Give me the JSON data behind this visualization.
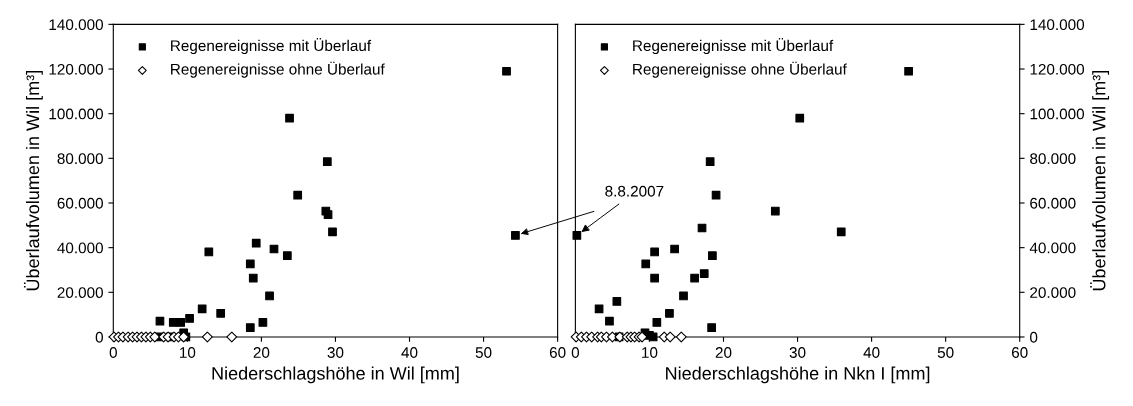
{
  "chart_data": [
    {
      "type": "scatter",
      "xlabel": "Niederschlagshöhe in Wil [mm]",
      "ylabel": "Überlaufvolumen in Wil [m³]",
      "xlim": [
        0,
        60
      ],
      "xticks": [
        0,
        10,
        20,
        30,
        40,
        50,
        60
      ],
      "ylim": [
        0,
        140000
      ],
      "yticks": [
        {
          "value": 0,
          "label": "0"
        },
        {
          "value": 20000,
          "label": "20.000"
        },
        {
          "value": 40000,
          "label": "40.000"
        },
        {
          "value": 60000,
          "label": "60.000"
        },
        {
          "value": 80000,
          "label": "80.000"
        },
        {
          "value": 100000,
          "label": "100.000"
        },
        {
          "value": 120000,
          "label": "120.000"
        },
        {
          "value": 140000,
          "label": "140.000"
        }
      ],
      "grid": false,
      "legend": "top left",
      "series": [
        {
          "name": "Regenereignisse mit Überlauf",
          "color": "#000000",
          "marker": "square",
          "x": [
            53.1,
            23.8,
            28.9,
            24.9,
            28.7,
            29.0,
            29.6,
            54.3,
            19.3,
            21.7,
            12.9,
            23.5,
            18.5,
            18.9,
            21.1,
            12.0,
            14.5,
            6.3,
            8.1,
            9.1,
            10.3,
            20.2,
            18.5,
            9.5,
            6.2,
            7.7,
            9.8
          ],
          "values": [
            119000,
            98000,
            78500,
            63500,
            56400,
            54800,
            47100,
            45500,
            42000,
            39400,
            38100,
            36400,
            32700,
            26400,
            18400,
            12600,
            10600,
            7100,
            6500,
            6500,
            8300,
            6500,
            4200,
            1900,
            0,
            0,
            0
          ]
        },
        {
          "name": "Regenereignisse ohne Überlauf",
          "color": "#000000",
          "marker": "diamond",
          "x": [
            0.1,
            0.7,
            1.3,
            2.0,
            2.6,
            3.2,
            3.8,
            4.4,
            5.0,
            5.6,
            6.8,
            7.4,
            8.2,
            8.8,
            9.5,
            12.7,
            16.0
          ],
          "values": [
            0,
            0,
            0,
            0,
            0,
            0,
            0,
            0,
            0,
            0,
            0,
            0,
            0,
            0,
            0,
            0,
            0
          ]
        }
      ]
    },
    {
      "type": "scatter",
      "xlabel": "Niederschlagshöhe in Nkn I [mm]",
      "ylabel": "Überlaufvolumen in Wil [m³]",
      "xlim": [
        0,
        60
      ],
      "xticks": [
        0,
        10,
        20,
        30,
        40,
        50,
        60
      ],
      "ylim": [
        0,
        140000
      ],
      "yticks": [
        {
          "value": 0,
          "label": "0"
        },
        {
          "value": 20000,
          "label": "20.000"
        },
        {
          "value": 40000,
          "label": "40.000"
        },
        {
          "value": 60000,
          "label": "60.000"
        },
        {
          "value": 80000,
          "label": "80.000"
        },
        {
          "value": 100000,
          "label": "100.000"
        },
        {
          "value": 120000,
          "label": "120.000"
        },
        {
          "value": 140000,
          "label": "140.000"
        }
      ],
      "grid": false,
      "legend": "top left",
      "annotations": [
        {
          "text": "8.8.2007",
          "x": 0.2,
          "y": 45500
        }
      ],
      "series": [
        {
          "name": "Regenereignisse mit Überlauf",
          "color": "#000000",
          "marker": "square",
          "x": [
            45.0,
            30.3,
            18.2,
            19.0,
            27.0,
            17.1,
            35.9,
            0.2,
            13.4,
            10.7,
            18.5,
            9.5,
            17.4,
            10.7,
            16.1,
            14.6,
            5.6,
            3.2,
            12.7,
            4.6,
            11.0,
            18.4,
            9.4,
            10.0,
            10.5,
            5.9
          ],
          "values": [
            119000,
            98000,
            78500,
            63500,
            56400,
            48800,
            47100,
            45500,
            39400,
            38100,
            36400,
            32700,
            28400,
            26400,
            26400,
            18400,
            15900,
            12600,
            10600,
            7100,
            6500,
            4200,
            1900,
            700,
            0,
            0
          ]
        },
        {
          "name": "Regenereignisse ohne Überlauf",
          "color": "#000000",
          "marker": "diamond",
          "x": [
            0.1,
            0.8,
            1.5,
            2.2,
            3.0,
            3.5,
            4.2,
            5.0,
            6.0,
            7.0,
            7.5,
            8.0,
            8.6,
            9.0,
            12.0,
            12.8,
            14.3
          ],
          "values": [
            0,
            0,
            0,
            0,
            0,
            0,
            0,
            0,
            0,
            0,
            0,
            0,
            0,
            0,
            0,
            0,
            0
          ]
        }
      ]
    }
  ]
}
